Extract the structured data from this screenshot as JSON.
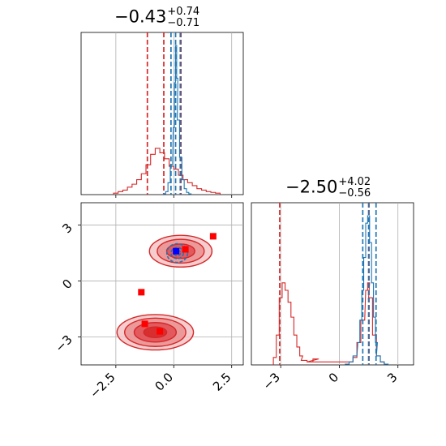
{
  "chart_data": [
    {
      "type": "histogram",
      "panel": "top-left",
      "title": {
        "median": "−0.43",
        "plus": "+0.74",
        "minus": "−0.71"
      },
      "xlim": [
        -4.0,
        3.0
      ],
      "xticks": [
        -2.5,
        0.0,
        2.5
      ],
      "grid": true,
      "series": [
        {
          "color": "#d62728",
          "bins_x": [
            -2.5,
            -2.3,
            -2.1,
            -1.9,
            -1.7,
            -1.5,
            -1.3,
            -1.1,
            -0.9,
            -0.7,
            -0.5,
            -0.3,
            -0.1,
            0.1,
            0.3,
            0.5,
            0.7,
            0.9,
            1.1,
            1.3,
            1.5,
            1.7,
            1.9
          ],
          "heights": [
            0.01,
            0.02,
            0.03,
            0.05,
            0.07,
            0.1,
            0.14,
            0.2,
            0.27,
            0.31,
            0.28,
            0.24,
            0.19,
            0.17,
            0.13,
            0.1,
            0.08,
            0.06,
            0.04,
            0.03,
            0.02,
            0.015,
            0.01
          ],
          "quantile_lines": [
            -1.14,
            -0.43,
            0.31
          ]
        },
        {
          "color": "#1f77b4",
          "bins_x": [
            -0.4,
            -0.3,
            -0.2,
            -0.1,
            0.0,
            0.05,
            0.1,
            0.15,
            0.2,
            0.3,
            0.4,
            0.5,
            0.6,
            0.7
          ],
          "heights": [
            0.005,
            0.02,
            0.08,
            0.2,
            0.45,
            0.75,
            1.0,
            0.78,
            0.5,
            0.25,
            0.1,
            0.04,
            0.015,
            0.005
          ],
          "quantile_lines": [
            -0.12,
            0.08,
            0.28
          ]
        }
      ]
    },
    {
      "type": "scatter-contour",
      "panel": "bottom-left",
      "xlim": [
        -4.0,
        3.0
      ],
      "ylim": [
        -4.5,
        4.2
      ],
      "xticks": [
        -2.5,
        0.0,
        2.5
      ],
      "yticks": [
        -3,
        0,
        3
      ],
      "grid": true,
      "contours": [
        {
          "color": "#d62728",
          "center": [
            -0.8,
            -2.75
          ],
          "radii": [
            1.65,
            0.95
          ],
          "levels": [
            1.0,
            0.8,
            0.55,
            0.3
          ]
        },
        {
          "color": "#d62728",
          "center": [
            0.3,
            1.6
          ],
          "radii": [
            1.35,
            0.85
          ],
          "levels": [
            1.0,
            0.75,
            0.45
          ]
        },
        {
          "color": "#1f77b4",
          "center": [
            0.15,
            1.5
          ],
          "radii": [
            0.45,
            0.5
          ],
          "levels": [
            1.0,
            0.6,
            0.3
          ]
        }
      ],
      "markers": [
        {
          "color": "#ff0000",
          "x": 1.7,
          "y": 2.4
        },
        {
          "color": "#ff0000",
          "x": 0.5,
          "y": 1.7
        },
        {
          "color": "#ff0000",
          "x": -1.4,
          "y": -0.6
        },
        {
          "color": "#ff0000",
          "x": -1.25,
          "y": -2.3
        },
        {
          "color": "#ff0000",
          "x": -0.6,
          "y": -2.7
        },
        {
          "color": "#0000ff",
          "x": 0.1,
          "y": 1.6
        }
      ]
    },
    {
      "type": "histogram",
      "panel": "bottom-right",
      "title": {
        "median": "−2.50",
        "plus": "+4.02",
        "minus": "−0.56"
      },
      "xlim": [
        -4.5,
        3.8
      ],
      "xticks": [
        -3,
        0,
        3
      ],
      "grid": true,
      "series": [
        {
          "color": "#d62728",
          "bins_x": [
            -3.3,
            -3.15,
            -3.0,
            -2.85,
            -2.7,
            -2.55,
            -2.4,
            -2.25,
            -2.1,
            -1.95,
            -1.8,
            -1.5,
            -1.2,
            -0.9,
            0.6,
            0.8,
            1.0,
            1.2,
            1.4,
            1.5,
            1.6,
            1.8,
            2.0,
            2.2
          ],
          "heights": [
            0.05,
            0.2,
            0.45,
            0.55,
            0.5,
            0.42,
            0.32,
            0.2,
            0.12,
            0.06,
            0.03,
            0.02,
            0.04,
            0.02,
            0.02,
            0.05,
            0.15,
            0.3,
            0.5,
            0.55,
            0.45,
            0.2,
            0.06,
            0.02
          ],
          "quantile_lines": [
            -3.05,
            1.52
          ]
        },
        {
          "color": "#1f77b4",
          "bins_x": [
            0.4,
            0.6,
            0.8,
            1.0,
            1.1,
            1.2,
            1.3,
            1.4,
            1.5,
            1.6,
            1.7,
            1.8,
            1.9,
            2.0,
            2.2,
            2.4
          ],
          "heights": [
            0.005,
            0.02,
            0.06,
            0.15,
            0.3,
            0.5,
            0.72,
            0.95,
            1.0,
            0.82,
            0.55,
            0.32,
            0.15,
            0.06,
            0.02,
            0.005
          ],
          "quantile_lines": [
            1.2,
            1.5,
            1.88
          ]
        }
      ]
    }
  ]
}
